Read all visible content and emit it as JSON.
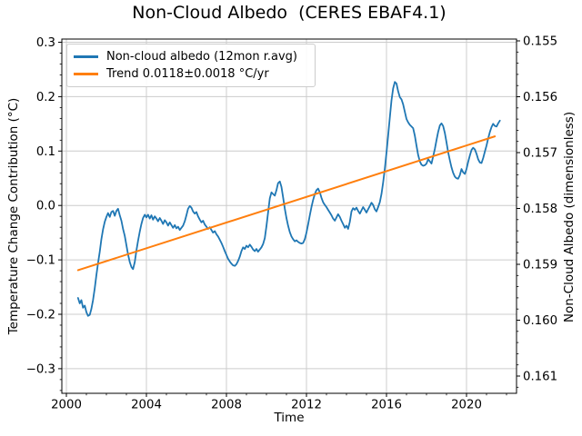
{
  "chart_data": {
    "type": "line",
    "title": "Non-Cloud Albedo  (CERES EBAF4.1)",
    "xlabel": "Time",
    "ylabel_left": "Temperature Change Contribution (°C)",
    "ylabel_right": "Non-Cloud Albedo (dimensionless)",
    "grid": true,
    "legend_position": "upper left",
    "x_axis": {
      "range": [
        1999.77,
        2022.5
      ],
      "ticks": [
        2000,
        2004,
        2008,
        2012,
        2016,
        2020
      ],
      "tick_labels": [
        "2000",
        "2004",
        "2008",
        "2012",
        "2016",
        "2020"
      ],
      "minor_tick_step_years": 1
    },
    "y_left_axis": {
      "range": [
        -0.346,
        0.306
      ],
      "ticks": [
        0.3,
        0.2,
        0.1,
        0.0,
        -0.1,
        -0.2,
        -0.3
      ],
      "tick_labels": [
        "0.3",
        "0.2",
        "0.1",
        "0.0",
        "−0.1",
        "−0.2",
        "−0.3"
      ],
      "minor_tick_step": 0.02
    },
    "y_right_axis": {
      "inverted": true,
      "ticks": [
        0.155,
        0.156,
        0.157,
        0.158,
        0.159,
        0.16,
        0.161
      ],
      "tick_labels": [
        "0.155",
        "0.156",
        "0.157",
        "0.158",
        "0.159",
        "0.160",
        "0.161"
      ],
      "minor_tick_step": 0.0002
    },
    "trend_value_c_per_yr": "0.0118",
    "trend_uncertainty_c_per_yr": "0.0018",
    "series": [
      {
        "name": "Non-cloud albedo (12mon r.avg)",
        "color": "#1f77b4",
        "x_start": 2000.5833,
        "x_step": 0.0833333,
        "values": [
          -0.17,
          -0.18,
          -0.174,
          -0.188,
          -0.184,
          -0.196,
          -0.203,
          -0.201,
          -0.19,
          -0.174,
          -0.152,
          -0.128,
          -0.106,
          -0.085,
          -0.062,
          -0.044,
          -0.03,
          -0.021,
          -0.014,
          -0.021,
          -0.012,
          -0.01,
          -0.019,
          -0.01,
          -0.006,
          -0.018,
          -0.028,
          -0.043,
          -0.056,
          -0.073,
          -0.09,
          -0.104,
          -0.113,
          -0.117,
          -0.104,
          -0.083,
          -0.065,
          -0.048,
          -0.034,
          -0.023,
          -0.017,
          -0.022,
          -0.017,
          -0.024,
          -0.018,
          -0.026,
          -0.02,
          -0.024,
          -0.029,
          -0.023,
          -0.028,
          -0.034,
          -0.027,
          -0.031,
          -0.037,
          -0.031,
          -0.036,
          -0.041,
          -0.036,
          -0.042,
          -0.039,
          -0.045,
          -0.041,
          -0.037,
          -0.029,
          -0.018,
          -0.006,
          -0.001,
          -0.004,
          -0.011,
          -0.015,
          -0.012,
          -0.02,
          -0.026,
          -0.031,
          -0.028,
          -0.035,
          -0.039,
          -0.043,
          -0.04,
          -0.045,
          -0.05,
          -0.047,
          -0.053,
          -0.057,
          -0.063,
          -0.069,
          -0.076,
          -0.084,
          -0.091,
          -0.098,
          -0.103,
          -0.107,
          -0.11,
          -0.111,
          -0.108,
          -0.102,
          -0.094,
          -0.084,
          -0.077,
          -0.08,
          -0.074,
          -0.077,
          -0.072,
          -0.076,
          -0.081,
          -0.084,
          -0.08,
          -0.085,
          -0.081,
          -0.077,
          -0.071,
          -0.06,
          -0.038,
          -0.013,
          0.013,
          0.024,
          0.021,
          0.018,
          0.028,
          0.041,
          0.044,
          0.034,
          0.015,
          -0.006,
          -0.023,
          -0.037,
          -0.049,
          -0.057,
          -0.062,
          -0.066,
          -0.064,
          -0.067,
          -0.069,
          -0.07,
          -0.069,
          -0.062,
          -0.05,
          -0.035,
          -0.018,
          -0.003,
          0.01,
          0.021,
          0.028,
          0.031,
          0.024,
          0.014,
          0.006,
          0.001,
          -0.003,
          -0.008,
          -0.013,
          -0.018,
          -0.024,
          -0.028,
          -0.022,
          -0.016,
          -0.021,
          -0.028,
          -0.034,
          -0.041,
          -0.037,
          -0.043,
          -0.03,
          -0.011,
          -0.005,
          -0.008,
          -0.004,
          -0.01,
          -0.015,
          -0.009,
          -0.003,
          -0.008,
          -0.013,
          -0.007,
          -0.001,
          0.005,
          0.001,
          -0.007,
          -0.011,
          -0.003,
          0.006,
          0.021,
          0.042,
          0.068,
          0.097,
          0.128,
          0.162,
          0.193,
          0.215,
          0.227,
          0.224,
          0.21,
          0.199,
          0.195,
          0.186,
          0.172,
          0.159,
          0.153,
          0.148,
          0.145,
          0.142,
          0.128,
          0.11,
          0.093,
          0.081,
          0.075,
          0.073,
          0.074,
          0.077,
          0.085,
          0.081,
          0.077,
          0.09,
          0.104,
          0.12,
          0.135,
          0.147,
          0.151,
          0.146,
          0.133,
          0.116,
          0.098,
          0.083,
          0.07,
          0.06,
          0.053,
          0.05,
          0.049,
          0.056,
          0.067,
          0.061,
          0.058,
          0.067,
          0.08,
          0.092,
          0.102,
          0.106,
          0.103,
          0.095,
          0.085,
          0.079,
          0.078,
          0.087,
          0.099,
          0.11,
          0.123,
          0.135,
          0.144,
          0.15,
          0.146,
          0.145,
          0.151,
          0.156
        ]
      },
      {
        "name": "Trend 0.0118±0.0018 °C/yr",
        "color": "#ff7f0e",
        "x": [
          2000.583,
          2021.417
        ],
        "y": [
          -0.119,
          0.127
        ]
      }
    ]
  }
}
